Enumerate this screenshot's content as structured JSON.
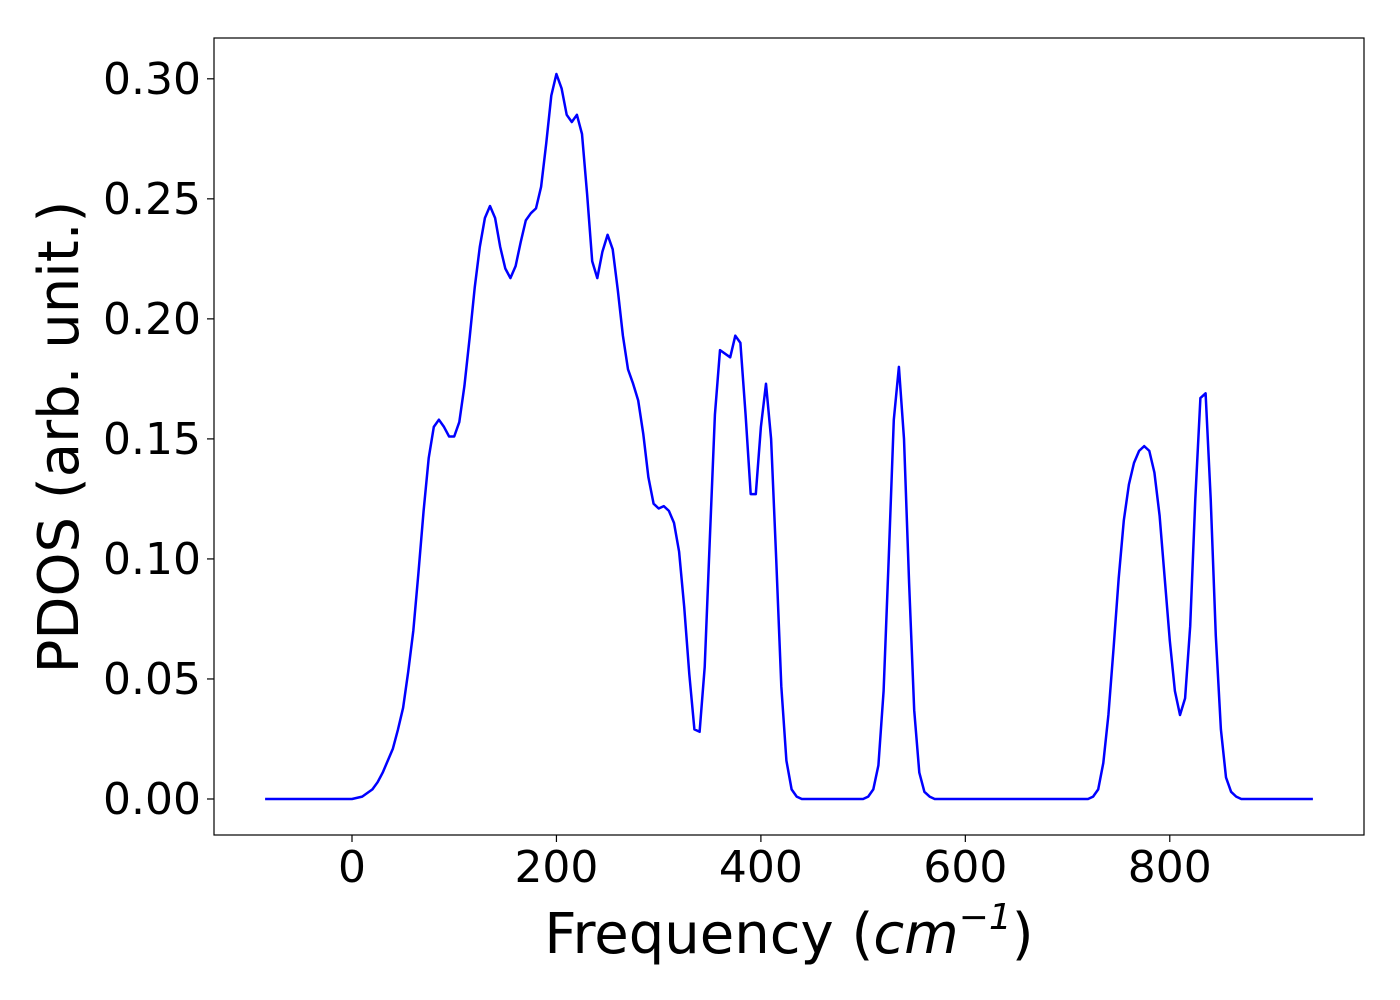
{
  "chart_data": {
    "type": "line",
    "title": "",
    "xlabel_main": "Frequency (",
    "xlabel_unit": "cm",
    "xlabel_sup": "−1",
    "xlabel_close": ")",
    "ylabel": "PDOS (arb. unit.)",
    "xlim": [
      -135,
      990
    ],
    "ylim": [
      -0.015,
      0.317
    ],
    "xticks": [
      0,
      200,
      400,
      600,
      800
    ],
    "xtick_labels": [
      "0",
      "200",
      "400",
      "600",
      "800"
    ],
    "yticks": [
      0.0,
      0.05,
      0.1,
      0.15,
      0.2,
      0.25,
      0.3
    ],
    "ytick_labels": [
      "0.00",
      "0.05",
      "0.10",
      "0.15",
      "0.20",
      "0.25",
      "0.30"
    ],
    "grid": false,
    "legend": "none",
    "series": [
      {
        "color": "#0000ff",
        "points": [
          [
            -85,
            0.0
          ],
          [
            -20,
            0.0
          ],
          [
            0,
            0.0
          ],
          [
            10,
            0.001
          ],
          [
            20,
            0.004
          ],
          [
            25,
            0.007
          ],
          [
            30,
            0.011
          ],
          [
            35,
            0.016
          ],
          [
            40,
            0.021
          ],
          [
            45,
            0.029
          ],
          [
            50,
            0.038
          ],
          [
            55,
            0.053
          ],
          [
            60,
            0.07
          ],
          [
            65,
            0.094
          ],
          [
            70,
            0.12
          ],
          [
            75,
            0.142
          ],
          [
            80,
            0.155
          ],
          [
            85,
            0.158
          ],
          [
            90,
            0.155
          ],
          [
            95,
            0.151
          ],
          [
            100,
            0.151
          ],
          [
            105,
            0.157
          ],
          [
            110,
            0.172
          ],
          [
            115,
            0.192
          ],
          [
            120,
            0.213
          ],
          [
            125,
            0.23
          ],
          [
            130,
            0.242
          ],
          [
            135,
            0.247
          ],
          [
            140,
            0.242
          ],
          [
            145,
            0.23
          ],
          [
            150,
            0.221
          ],
          [
            155,
            0.217
          ],
          [
            160,
            0.222
          ],
          [
            165,
            0.232
          ],
          [
            170,
            0.241
          ],
          [
            175,
            0.244
          ],
          [
            180,
            0.246
          ],
          [
            185,
            0.255
          ],
          [
            190,
            0.273
          ],
          [
            195,
            0.293
          ],
          [
            200,
            0.302
          ],
          [
            205,
            0.296
          ],
          [
            210,
            0.285
          ],
          [
            215,
            0.282
          ],
          [
            220,
            0.285
          ],
          [
            225,
            0.277
          ],
          [
            230,
            0.252
          ],
          [
            235,
            0.224
          ],
          [
            240,
            0.217
          ],
          [
            245,
            0.228
          ],
          [
            250,
            0.235
          ],
          [
            255,
            0.229
          ],
          [
            260,
            0.212
          ],
          [
            265,
            0.193
          ],
          [
            270,
            0.179
          ],
          [
            275,
            0.173
          ],
          [
            280,
            0.166
          ],
          [
            285,
            0.152
          ],
          [
            290,
            0.134
          ],
          [
            295,
            0.123
          ],
          [
            300,
            0.121
          ],
          [
            305,
            0.122
          ],
          [
            310,
            0.12
          ],
          [
            315,
            0.115
          ],
          [
            320,
            0.103
          ],
          [
            325,
            0.08
          ],
          [
            330,
            0.052
          ],
          [
            335,
            0.029
          ],
          [
            340,
            0.028
          ],
          [
            345,
            0.055
          ],
          [
            350,
            0.108
          ],
          [
            355,
            0.16
          ],
          [
            360,
            0.187
          ],
          [
            370,
            0.184
          ],
          [
            375,
            0.193
          ],
          [
            380,
            0.19
          ],
          [
            385,
            0.16
          ],
          [
            390,
            0.127
          ],
          [
            395,
            0.127
          ],
          [
            400,
            0.155
          ],
          [
            405,
            0.173
          ],
          [
            410,
            0.15
          ],
          [
            415,
            0.1
          ],
          [
            420,
            0.047
          ],
          [
            425,
            0.016
          ],
          [
            430,
            0.004
          ],
          [
            435,
            0.001
          ],
          [
            440,
            0.0
          ],
          [
            500,
            0.0
          ],
          [
            505,
            0.001
          ],
          [
            510,
            0.004
          ],
          [
            515,
            0.014
          ],
          [
            520,
            0.045
          ],
          [
            525,
            0.1
          ],
          [
            530,
            0.158
          ],
          [
            535,
            0.18
          ],
          [
            540,
            0.15
          ],
          [
            545,
            0.09
          ],
          [
            550,
            0.037
          ],
          [
            555,
            0.011
          ],
          [
            560,
            0.003
          ],
          [
            565,
            0.001
          ],
          [
            570,
            0.0
          ],
          [
            720,
            0.0
          ],
          [
            725,
            0.001
          ],
          [
            730,
            0.004
          ],
          [
            735,
            0.015
          ],
          [
            740,
            0.035
          ],
          [
            745,
            0.063
          ],
          [
            750,
            0.092
          ],
          [
            755,
            0.116
          ],
          [
            760,
            0.131
          ],
          [
            765,
            0.14
          ],
          [
            770,
            0.145
          ],
          [
            775,
            0.147
          ],
          [
            780,
            0.145
          ],
          [
            785,
            0.136
          ],
          [
            790,
            0.118
          ],
          [
            795,
            0.092
          ],
          [
            800,
            0.066
          ],
          [
            805,
            0.045
          ],
          [
            810,
            0.035
          ],
          [
            815,
            0.042
          ],
          [
            820,
            0.072
          ],
          [
            825,
            0.125
          ],
          [
            830,
            0.167
          ],
          [
            835,
            0.169
          ],
          [
            840,
            0.125
          ],
          [
            845,
            0.068
          ],
          [
            850,
            0.029
          ],
          [
            855,
            0.009
          ],
          [
            860,
            0.003
          ],
          [
            865,
            0.001
          ],
          [
            870,
            0.0
          ],
          [
            940,
            0.0
          ]
        ]
      }
    ]
  }
}
